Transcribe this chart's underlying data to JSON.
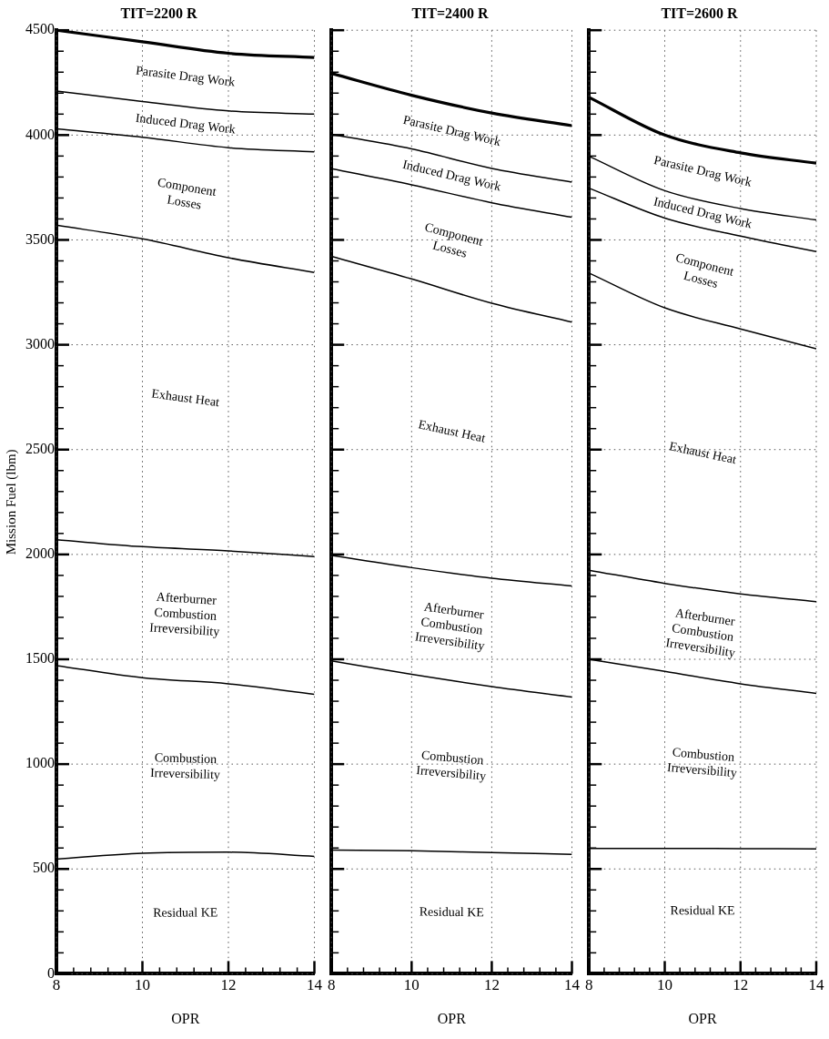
{
  "chart_data": [
    {
      "type": "line",
      "title": "TIT=2200 R",
      "xlabel": "OPR",
      "ylabel": "Mission Fuel (lbm)",
      "xlim": [
        8,
        14
      ],
      "ylim": [
        0,
        4500
      ],
      "xticks": [
        8,
        {
          "value": 8.4,
          "label": null
        },
        {
          "value": 8.8,
          "label": null
        },
        {
          "value": 9.2,
          "label": null
        },
        {
          "value": 9.6,
          "label": null
        },
        10,
        {
          "value": 10.4,
          "label": null
        },
        {
          "value": 10.8,
          "label": null
        },
        {
          "value": 11.2,
          "label": null
        },
        {
          "value": 11.6,
          "label": null
        },
        12,
        {
          "value": 12.4,
          "label": null
        },
        {
          "value": 12.8,
          "label": null
        },
        {
          "value": 13.2,
          "label": null
        },
        {
          "value": 13.6,
          "label": null
        },
        14
      ],
      "yticks": [
        0,
        {
          "value": 100,
          "label": null
        },
        {
          "value": 200,
          "label": null
        },
        {
          "value": 300,
          "label": null
        },
        {
          "value": 400,
          "label": null
        },
        500,
        {
          "value": 600,
          "label": null
        },
        {
          "value": 700,
          "label": null
        },
        {
          "value": 800,
          "label": null
        },
        {
          "value": 900,
          "label": null
        },
        1000,
        {
          "value": 1100,
          "label": null
        },
        {
          "value": 1200,
          "label": null
        },
        {
          "value": 1300,
          "label": null
        },
        {
          "value": 1400,
          "label": null
        },
        1500,
        {
          "value": 1600,
          "label": null
        },
        {
          "value": 1700,
          "label": null
        },
        {
          "value": 1800,
          "label": null
        },
        {
          "value": 1900,
          "label": null
        },
        2000,
        {
          "value": 2100,
          "label": null
        },
        {
          "value": 2200,
          "label": null
        },
        {
          "value": 2300,
          "label": null
        },
        {
          "value": 2400,
          "label": null
        },
        2500,
        {
          "value": 2600,
          "label": null
        },
        {
          "value": 2700,
          "label": null
        },
        {
          "value": 2800,
          "label": null
        },
        {
          "value": 2900,
          "label": null
        },
        3000,
        {
          "value": 3100,
          "label": null
        },
        {
          "value": 3200,
          "label": null
        },
        {
          "value": 3300,
          "label": null
        },
        {
          "value": 3400,
          "label": null
        },
        3500,
        {
          "value": 3600,
          "label": null
        },
        {
          "value": 3700,
          "label": null
        },
        {
          "value": 3800,
          "label": null
        },
        {
          "value": 3900,
          "label": null
        },
        4000,
        {
          "value": 4100,
          "label": null
        },
        {
          "value": 4200,
          "label": null
        },
        {
          "value": 4300,
          "label": null
        },
        {
          "value": 4400,
          "label": null
        },
        4500
      ],
      "grid": true,
      "x": [
        8,
        10,
        12,
        14
      ],
      "series": [
        {
          "color": "#000000",
          "values": [
            4500,
            4445,
            4390,
            4370
          ]
        },
        {
          "color": "#000000",
          "values": [
            4210,
            4160,
            4115,
            4100
          ]
        },
        {
          "color": "#000000",
          "values": [
            4030,
            3990,
            3940,
            3920
          ]
        },
        {
          "color": "#000000",
          "values": [
            3570,
            3505,
            3415,
            3345
          ]
        },
        {
          "color": "#000000",
          "values": [
            2070,
            2037,
            2017,
            1990
          ]
        },
        {
          "color": "#000000",
          "values": [
            1470,
            1412,
            1383,
            1333
          ]
        },
        {
          "color": "#000000",
          "values": [
            547,
            575,
            580,
            560
          ]
        }
      ],
      "annotations": [
        "Parasite Drag Work",
        "Induced Drag Work",
        "Component\nLosses",
        "Exhaust Heat",
        "Afterburner\nCombustion\nIrreversibility",
        "Combustion\nIrreversibility",
        "Residual KE"
      ]
    },
    {
      "type": "line",
      "title": "TIT=2400 R",
      "xlabel": "OPR",
      "xlim": [
        8,
        14
      ],
      "ylim": [
        0,
        4500
      ],
      "tick_labels": "x",
      "xticks": [
        8,
        {
          "value": 8.4,
          "label": null
        },
        {
          "value": 8.8,
          "label": null
        },
        {
          "value": 9.2,
          "label": null
        },
        {
          "value": 9.6,
          "label": null
        },
        10,
        {
          "value": 10.4,
          "label": null
        },
        {
          "value": 10.8,
          "label": null
        },
        {
          "value": 11.2,
          "label": null
        },
        {
          "value": 11.6,
          "label": null
        },
        12,
        {
          "value": 12.4,
          "label": null
        },
        {
          "value": 12.8,
          "label": null
        },
        {
          "value": 13.2,
          "label": null
        },
        {
          "value": 13.6,
          "label": null
        },
        14
      ],
      "yticks": [
        0,
        {
          "value": 100,
          "label": null
        },
        {
          "value": 200,
          "label": null
        },
        {
          "value": 300,
          "label": null
        },
        {
          "value": 400,
          "label": null
        },
        500,
        {
          "value": 600,
          "label": null
        },
        {
          "value": 700,
          "label": null
        },
        {
          "value": 800,
          "label": null
        },
        {
          "value": 900,
          "label": null
        },
        1000,
        {
          "value": 1100,
          "label": null
        },
        {
          "value": 1200,
          "label": null
        },
        {
          "value": 1300,
          "label": null
        },
        {
          "value": 1400,
          "label": null
        },
        1500,
        {
          "value": 1600,
          "label": null
        },
        {
          "value": 1700,
          "label": null
        },
        {
          "value": 1800,
          "label": null
        },
        {
          "value": 1900,
          "label": null
        },
        2000,
        {
          "value": 2100,
          "label": null
        },
        {
          "value": 2200,
          "label": null
        },
        {
          "value": 2300,
          "label": null
        },
        {
          "value": 2400,
          "label": null
        },
        2500,
        {
          "value": 2600,
          "label": null
        },
        {
          "value": 2700,
          "label": null
        },
        {
          "value": 2800,
          "label": null
        },
        {
          "value": 2900,
          "label": null
        },
        3000,
        {
          "value": 3100,
          "label": null
        },
        {
          "value": 3200,
          "label": null
        },
        {
          "value": 3300,
          "label": null
        },
        {
          "value": 3400,
          "label": null
        },
        3500,
        {
          "value": 3600,
          "label": null
        },
        {
          "value": 3700,
          "label": null
        },
        {
          "value": 3800,
          "label": null
        },
        {
          "value": 3900,
          "label": null
        },
        4000,
        {
          "value": 4100,
          "label": null
        },
        {
          "value": 4200,
          "label": null
        },
        {
          "value": 4300,
          "label": null
        },
        {
          "value": 4400,
          "label": null
        },
        4500
      ],
      "grid": true,
      "x": [
        8,
        10,
        12,
        14
      ],
      "series": [
        {
          "color": "#000000",
          "values": [
            4294,
            4190,
            4105,
            4045
          ]
        },
        {
          "color": "#000000",
          "values": [
            4004,
            3934,
            3841,
            3776
          ]
        },
        {
          "color": "#000000",
          "values": [
            3840,
            3763,
            3677,
            3608
          ]
        },
        {
          "color": "#000000",
          "values": [
            3422,
            3314,
            3198,
            3108
          ]
        },
        {
          "color": "#000000",
          "values": [
            1995,
            1937,
            1887,
            1850
          ]
        },
        {
          "color": "#000000",
          "values": [
            1492,
            1428,
            1370,
            1320
          ]
        },
        {
          "color": "#000000",
          "values": [
            590,
            587,
            578,
            570
          ]
        }
      ],
      "annotations": [
        "Parasite Drag Work",
        "Induced Drag Work",
        "Component\nLosses",
        "Exhaust Heat",
        "Afterburner\nCombustion\nIrreversibility",
        "Combustion\nIrreversibility",
        "Residual KE"
      ]
    },
    {
      "type": "line",
      "title": "TIT=2600 R",
      "xlabel": "OPR",
      "xlim": [
        8,
        14
      ],
      "ylim": [
        0,
        4500
      ],
      "tick_labels": "x",
      "xticks": [
        8,
        {
          "value": 8.4,
          "label": null
        },
        {
          "value": 8.8,
          "label": null
        },
        {
          "value": 9.2,
          "label": null
        },
        {
          "value": 9.6,
          "label": null
        },
        10,
        {
          "value": 10.4,
          "label": null
        },
        {
          "value": 10.8,
          "label": null
        },
        {
          "value": 11.2,
          "label": null
        },
        {
          "value": 11.6,
          "label": null
        },
        12,
        {
          "value": 12.4,
          "label": null
        },
        {
          "value": 12.8,
          "label": null
        },
        {
          "value": 13.2,
          "label": null
        },
        {
          "value": 13.6,
          "label": null
        },
        14
      ],
      "yticks": [
        0,
        {
          "value": 100,
          "label": null
        },
        {
          "value": 200,
          "label": null
        },
        {
          "value": 300,
          "label": null
        },
        {
          "value": 400,
          "label": null
        },
        500,
        {
          "value": 600,
          "label": null
        },
        {
          "value": 700,
          "label": null
        },
        {
          "value": 800,
          "label": null
        },
        {
          "value": 900,
          "label": null
        },
        1000,
        {
          "value": 1100,
          "label": null
        },
        {
          "value": 1200,
          "label": null
        },
        {
          "value": 1300,
          "label": null
        },
        {
          "value": 1400,
          "label": null
        },
        1500,
        {
          "value": 1600,
          "label": null
        },
        {
          "value": 1700,
          "label": null
        },
        {
          "value": 1800,
          "label": null
        },
        {
          "value": 1900,
          "label": null
        },
        2000,
        {
          "value": 2100,
          "label": null
        },
        {
          "value": 2200,
          "label": null
        },
        {
          "value": 2300,
          "label": null
        },
        {
          "value": 2400,
          "label": null
        },
        2500,
        {
          "value": 2600,
          "label": null
        },
        {
          "value": 2700,
          "label": null
        },
        {
          "value": 2800,
          "label": null
        },
        {
          "value": 2900,
          "label": null
        },
        3000,
        {
          "value": 3100,
          "label": null
        },
        {
          "value": 3200,
          "label": null
        },
        {
          "value": 3300,
          "label": null
        },
        {
          "value": 3400,
          "label": null
        },
        3500,
        {
          "value": 3600,
          "label": null
        },
        {
          "value": 3700,
          "label": null
        },
        {
          "value": 3800,
          "label": null
        },
        {
          "value": 3900,
          "label": null
        },
        4000,
        {
          "value": 4100,
          "label": null
        },
        {
          "value": 4200,
          "label": null
        },
        {
          "value": 4300,
          "label": null
        },
        {
          "value": 4400,
          "label": null
        },
        4500
      ],
      "grid": true,
      "x": [
        8,
        10,
        12,
        14
      ],
      "series": [
        {
          "color": "#000000",
          "values": [
            4180,
            4000,
            3915,
            3866
          ]
        },
        {
          "color": "#000000",
          "values": [
            3899,
            3735,
            3650,
            3595
          ]
        },
        {
          "color": "#000000",
          "values": [
            3747,
            3604,
            3518,
            3444
          ]
        },
        {
          "color": "#000000",
          "values": [
            3342,
            3176,
            3075,
            2981
          ]
        },
        {
          "color": "#000000",
          "values": [
            1925,
            1862,
            1812,
            1775
          ]
        },
        {
          "color": "#000000",
          "values": [
            1500,
            1442,
            1383,
            1337
          ]
        },
        {
          "color": "#000000",
          "values": [
            598,
            598,
            597,
            596
          ]
        }
      ],
      "annotations": [
        "Parasite Drag Work",
        "Induced Drag Work",
        "Component\nLosses",
        "Exhaust Heat",
        "Afterburner\nCombustion\nIrreversibility",
        "Combustion\nIrreversibility",
        "Residual KE"
      ]
    }
  ]
}
